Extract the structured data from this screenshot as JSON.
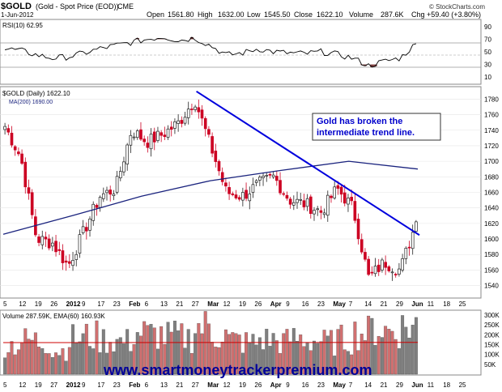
{
  "header": {
    "symbol": "$GOLD",
    "description": "(Gold - Spot Price (EOD))",
    "exchange": "CME",
    "date": "1-Jun-2012",
    "watermark": "© StockCharts.com",
    "quote": {
      "open_label": "Open",
      "open": "1561.80",
      "high_label": "High",
      "high": "1632.00",
      "low_label": "Low",
      "low": "1545.50",
      "close_label": "Close",
      "close": "1622.10",
      "volume_label": "Volume",
      "volume": "287.6K",
      "chg_label": "Chg",
      "chg": "+59.40 (+3.80%)"
    }
  },
  "rsi_panel": {
    "legend": "RSI(10) 62.95",
    "ticks": [
      "90",
      "70",
      "50",
      "30",
      "10"
    ]
  },
  "price_panel": {
    "legend_symbol": "$GOLD (Daily) 1622.10",
    "legend_ma": "MA(200) 1690.00",
    "ticks": [
      "1780",
      "1760",
      "1740",
      "1720",
      "1700",
      "1680",
      "1660",
      "1640",
      "1620",
      "1600",
      "1580",
      "1560",
      "1540"
    ],
    "annotation_line1": "Gold has broken the",
    "annotation_line2": "intermediate trend line."
  },
  "date_axis": {
    "labels": [
      "5",
      "12",
      "19",
      "26",
      "2012",
      "9",
      "17",
      "23",
      "Feb",
      "6",
      "13",
      "21",
      "27",
      "Mar",
      "12",
      "19",
      "26",
      "Apr",
      "9",
      "16",
      "23",
      "May",
      "7",
      "14",
      "21",
      "29",
      "Jun",
      "11",
      "18",
      "25"
    ]
  },
  "volume_panel": {
    "legend": "Volume 287.59K, EMA(60) 160.93K",
    "ticks": [
      "300K",
      "250K",
      "200K",
      "150K",
      "100K",
      "50K"
    ]
  },
  "bottom_axis": {
    "labels": [
      "5",
      "12",
      "19",
      "27",
      "2012",
      "9",
      "17",
      "23",
      "Feb",
      "6",
      "13",
      "21",
      "27",
      "Mar",
      "12",
      "19",
      "26",
      "Apr",
      "9",
      "16",
      "23",
      "May",
      "7",
      "14",
      "21",
      "29",
      "Jun",
      "11",
      "18",
      "25"
    ]
  },
  "footer": {
    "url": "www.smartmoneytrackerpremium.com"
  },
  "colors": {
    "up": "#222222",
    "down": "#cc0022",
    "ma": "#1a237e",
    "trendline": "#0000dd",
    "rsi": "#000000",
    "rsi_fill": "#7a3a3a",
    "annotation_text": "#0000cc",
    "vol_up": "#808080",
    "vol_down": "#d07070",
    "ema": "#cc0000",
    "footer_text": "#000099"
  },
  "chart_data": [
    {
      "type": "candlestick",
      "title": "$GOLD (Daily) 1622.10",
      "ylim": [
        1525,
        1795
      ],
      "series": [
        {
          "name": "$GOLD (Daily)",
          "x": [
            "Dec 5",
            "Dec 12",
            "Dec 19",
            "Dec 26",
            "Jan 3",
            "Jan 9",
            "Jan 17",
            "Jan 23",
            "Jan 30",
            "Feb 6",
            "Feb 13",
            "Feb 21",
            "Feb 27",
            "Mar 5",
            "Mar 12",
            "Mar 19",
            "Mar 26",
            "Apr 2",
            "Apr 9",
            "Apr 16",
            "Apr 23",
            "Apr 30",
            "May 7",
            "May 14",
            "May 21",
            "May 29",
            "Jun 1"
          ],
          "values": [
            1745,
            1705,
            1600,
            1595,
            1565,
            1610,
            1655,
            1665,
            1740,
            1725,
            1735,
            1750,
            1780,
            1720,
            1660,
            1655,
            1670,
            1680,
            1650,
            1645,
            1635,
            1665,
            1640,
            1550,
            1570,
            1560,
            1622
          ]
        },
        {
          "name": "MA(200)",
          "x": [
            "Dec 5",
            "Jan 3",
            "Feb 1",
            "Mar 1",
            "Apr 2",
            "May 1",
            "Jun 1"
          ],
          "values": [
            1606,
            1630,
            1655,
            1675,
            1688,
            1700,
            1690
          ]
        }
      ],
      "trendline": {
        "from": [
          "Feb 29",
          1790
        ],
        "to": [
          "Jun 1",
          1605
        ]
      }
    },
    {
      "type": "line",
      "title": "RSI(10) 62.95",
      "ylim": [
        0,
        100
      ],
      "series": [
        {
          "name": "RSI(10)",
          "values": [
            55,
            52,
            45,
            40,
            42,
            48,
            55,
            60,
            65,
            70,
            74,
            68,
            72,
            60,
            45,
            48,
            55,
            50,
            48,
            47,
            50,
            46,
            40,
            28,
            35,
            40,
            63
          ]
        }
      ]
    },
    {
      "type": "bar",
      "title": "Volume 287.59K, EMA(60) 160.93K",
      "ylim": [
        0,
        320000
      ],
      "series": [
        {
          "name": "Volume",
          "values": [
            150000,
            170000,
            160000,
            120000,
            180000,
            190000,
            175000,
            165000,
            210000,
            200000,
            190000,
            185000,
            240000,
            200000,
            170000,
            160000,
            175000,
            165000,
            180000,
            170000,
            160000,
            175000,
            210000,
            230000,
            220000,
            240000,
            287590
          ]
        },
        {
          "name": "EMA(60)",
          "values": [
            160000,
            160930
          ]
        }
      ]
    }
  ]
}
